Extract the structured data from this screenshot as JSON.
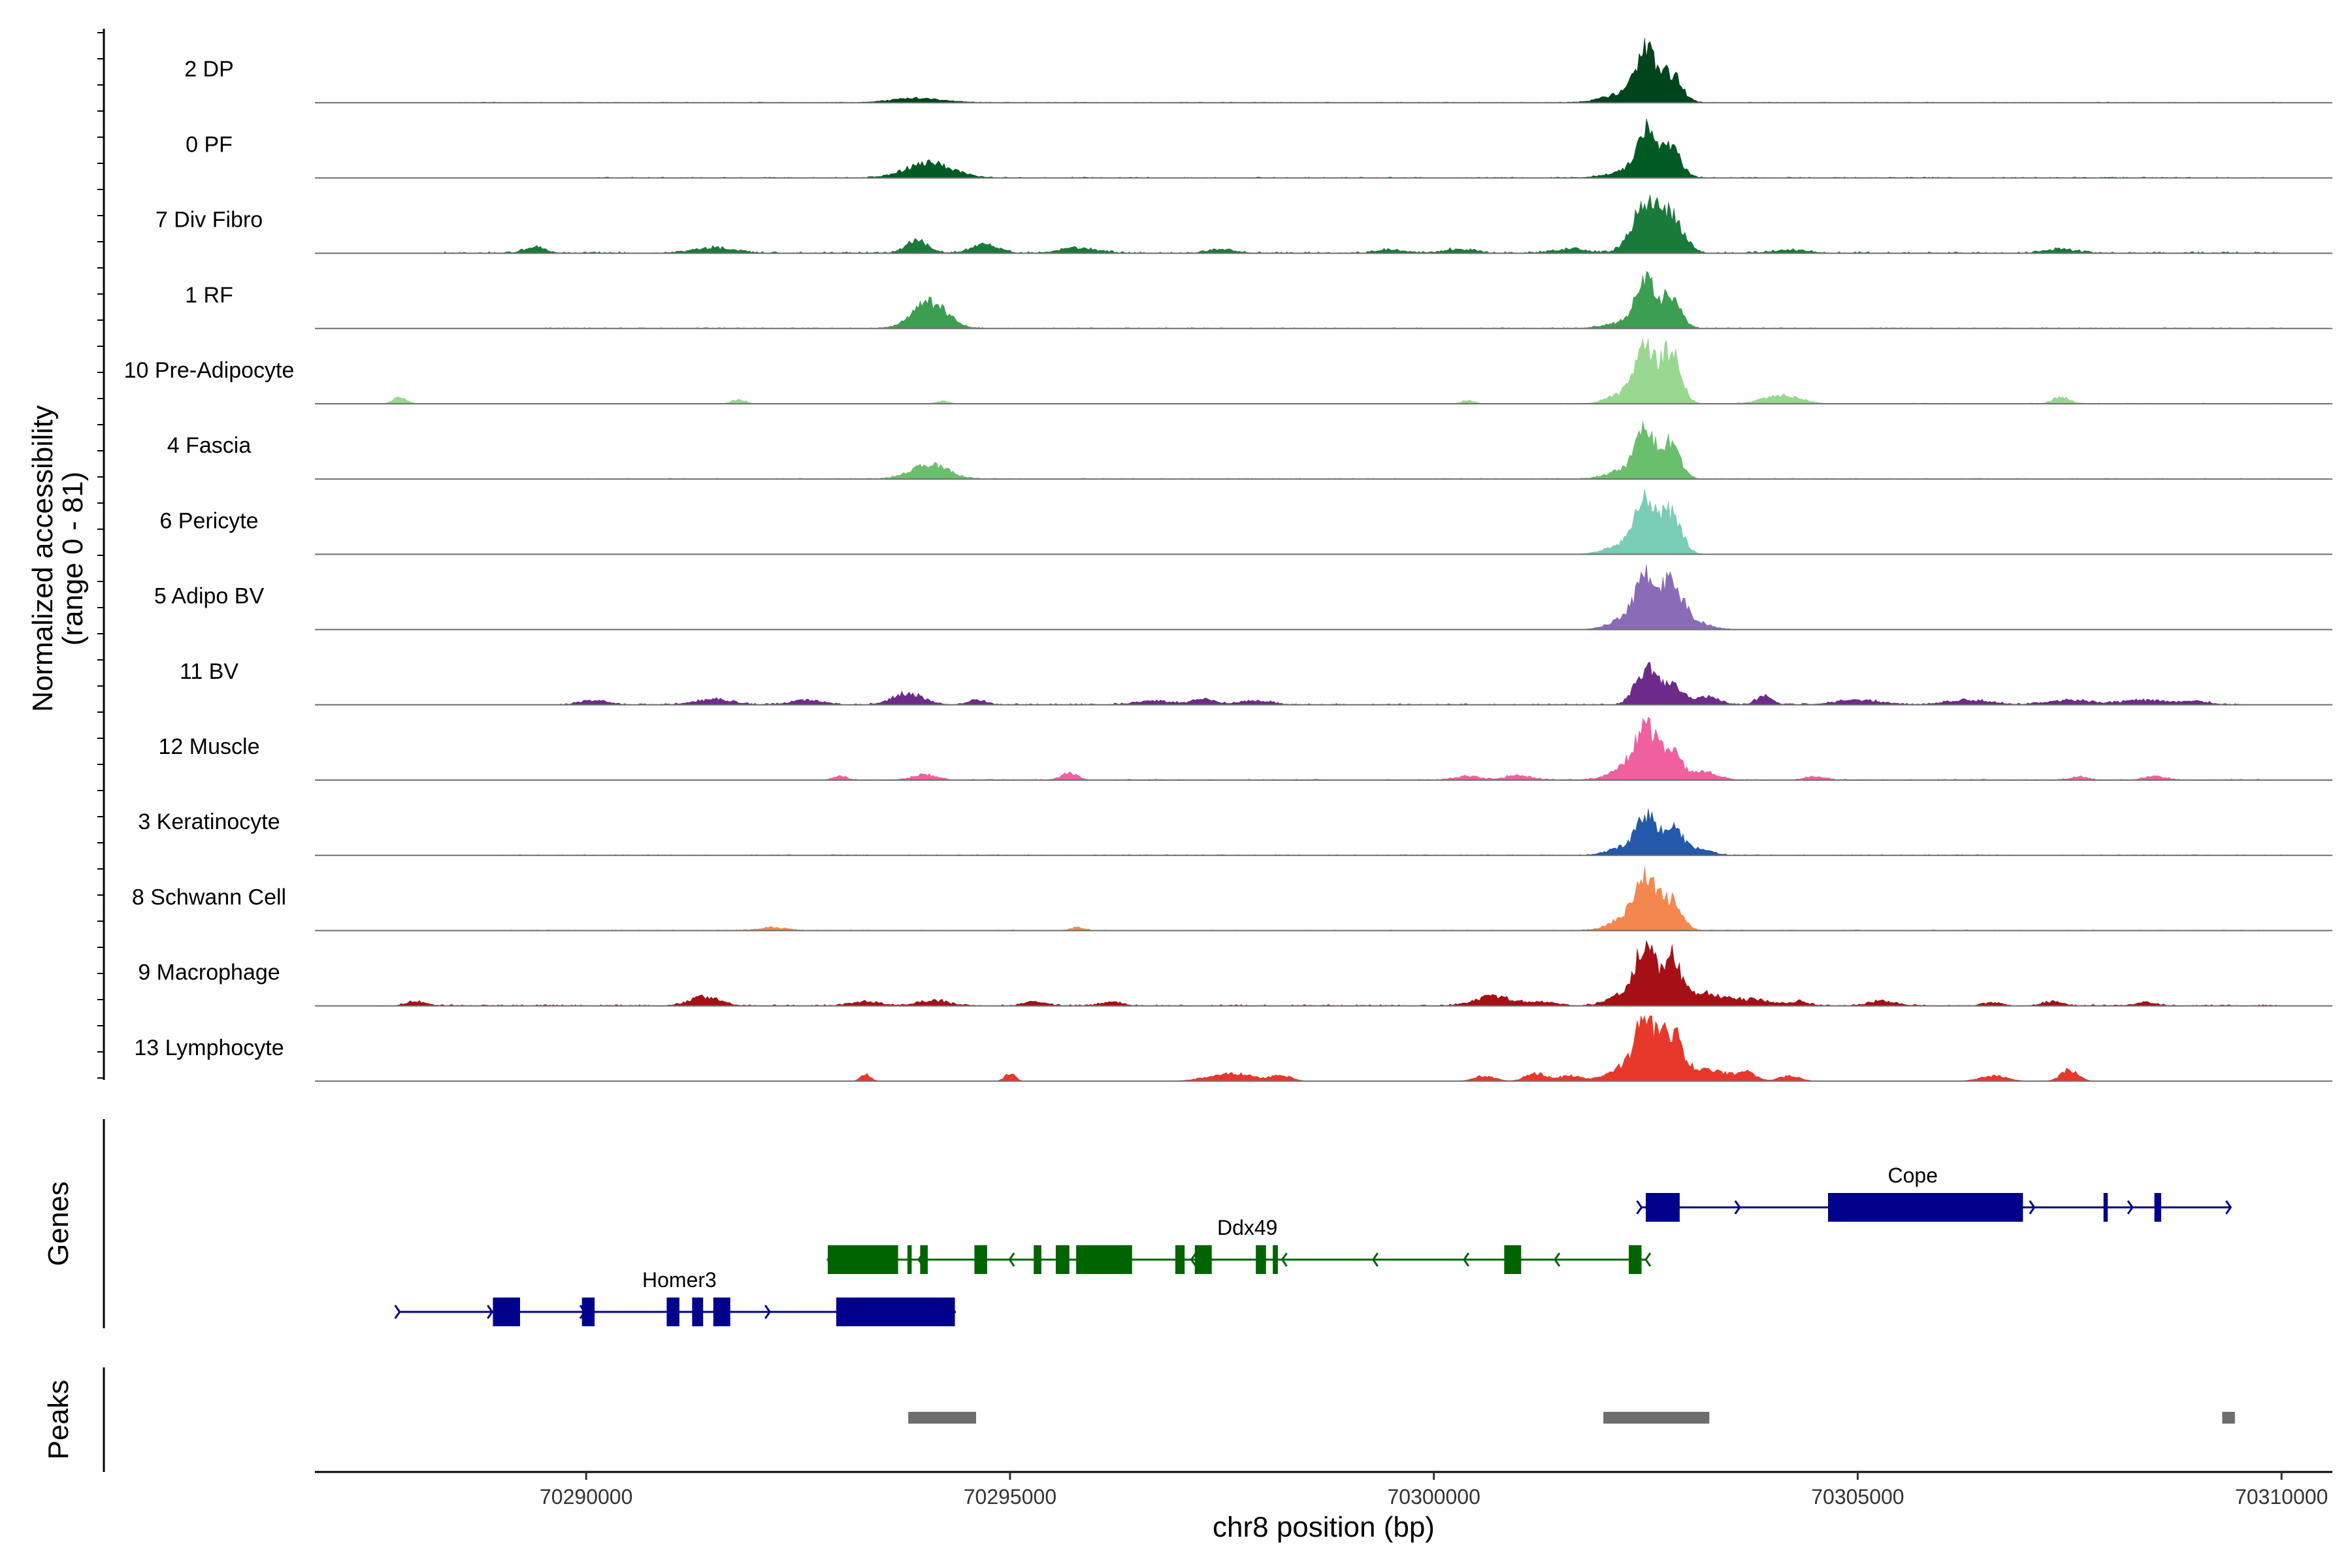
{
  "chart_data": {
    "type": "area",
    "title": "",
    "ylabel": "Normalized accessibility (range 0 - 81)",
    "ylabel_lines": [
      "Normalized accessibility",
      "(range 0 - 81)"
    ],
    "xlabel": "chr8 position (bp)",
    "xlim": [
      70286800,
      70310600
    ],
    "ylim": [
      0,
      81
    ],
    "x_ticks": [
      70290000,
      70295000,
      70300000,
      70305000,
      70310000
    ],
    "x_tick_labels": [
      "70290000",
      "70295000",
      "70300000",
      "70305000",
      "70310000"
    ],
    "genes_label": "Genes",
    "peaks_label": "Peaks",
    "series": [
      {
        "name": "2 DP",
        "color": "#00441b",
        "peaks": [
          [
            70293900,
            0.07,
            300
          ],
          [
            70302500,
            0.68,
            110
          ],
          [
            70302800,
            0.42,
            120
          ],
          [
            70302300,
            0.15,
            260
          ]
        ],
        "noise": [
          [
            70288500,
            70310000,
            0.01
          ]
        ]
      },
      {
        "name": "0 PF",
        "color": "#005a24",
        "peaks": [
          [
            70294050,
            0.22,
            280
          ],
          [
            70302500,
            0.62,
            110
          ],
          [
            70302800,
            0.42,
            110
          ],
          [
            70302400,
            0.12,
            280
          ]
        ],
        "noise": [
          [
            70290000,
            70310000,
            0.015
          ]
        ]
      },
      {
        "name": "7 Div Fibro",
        "color": "#1a7a3a",
        "peaks": [
          [
            70302500,
            0.72,
            160
          ],
          [
            70302800,
            0.5,
            140
          ],
          [
            70293900,
            0.2,
            130
          ],
          [
            70294700,
            0.13,
            160
          ],
          [
            70289400,
            0.1,
            120
          ],
          [
            70291500,
            0.08,
            240
          ],
          [
            70295800,
            0.08,
            220
          ],
          [
            70297500,
            0.06,
            160
          ],
          [
            70299500,
            0.05,
            160
          ],
          [
            70300300,
            0.06,
            180
          ],
          [
            70301600,
            0.06,
            200
          ],
          [
            70304200,
            0.05,
            200
          ],
          [
            70307400,
            0.06,
            180
          ]
        ],
        "noise": [
          [
            70288300,
            70310000,
            0.025
          ]
        ]
      },
      {
        "name": "1 RF",
        "color": "#3b9e50",
        "peaks": [
          [
            70294050,
            0.4,
            200
          ],
          [
            70302500,
            0.68,
            110
          ],
          [
            70302800,
            0.48,
            110
          ],
          [
            70302300,
            0.1,
            240
          ]
        ],
        "noise": [
          [
            70289500,
            70310000,
            0.015
          ]
        ]
      },
      {
        "name": "10 Pre-Adipocyte",
        "color": "#98d890",
        "peaks": [
          [
            70302500,
            0.78,
            110
          ],
          [
            70302800,
            0.82,
            110
          ],
          [
            70302300,
            0.18,
            200
          ],
          [
            70287800,
            0.1,
            80
          ],
          [
            70291800,
            0.07,
            80
          ],
          [
            70304100,
            0.12,
            220
          ],
          [
            70307400,
            0.1,
            100
          ],
          [
            70294200,
            0.04,
            80
          ],
          [
            70300400,
            0.05,
            80
          ]
        ],
        "noise": [
          [
            70301500,
            70310000,
            0.012
          ]
        ]
      },
      {
        "name": "4 Fascia",
        "color": "#6abf6c",
        "peaks": [
          [
            70294050,
            0.22,
            220
          ],
          [
            70302500,
            0.62,
            110
          ],
          [
            70302800,
            0.52,
            110
          ],
          [
            70302300,
            0.15,
            220
          ]
        ],
        "noise": [
          [
            70290000,
            70310000,
            0.012
          ]
        ]
      },
      {
        "name": "6 Pericyte",
        "color": "#79cdb6",
        "peaks": [
          [
            70302500,
            0.72,
            120
          ],
          [
            70302800,
            0.62,
            120
          ],
          [
            70302300,
            0.18,
            220
          ]
        ],
        "noise": [
          [
            70290000,
            70310000,
            0.008
          ]
        ]
      },
      {
        "name": "5 Adipo BV",
        "color": "#8a6bb8",
        "peaks": [
          [
            70302500,
            0.78,
            110
          ],
          [
            70302800,
            0.62,
            120
          ],
          [
            70303000,
            0.15,
            200
          ],
          [
            70302300,
            0.18,
            200
          ]
        ],
        "noise": [
          [
            70290000,
            70310000,
            0.006
          ]
        ]
      },
      {
        "name": "11 BV",
        "color": "#6e2a8a",
        "peaks": [
          [
            70302500,
            0.55,
            120
          ],
          [
            70302800,
            0.28,
            120
          ],
          [
            70303200,
            0.12,
            160
          ],
          [
            70293800,
            0.18,
            180
          ],
          [
            70290100,
            0.07,
            160
          ],
          [
            70291500,
            0.08,
            220
          ],
          [
            70292600,
            0.07,
            180
          ],
          [
            70294600,
            0.08,
            100
          ],
          [
            70296700,
            0.06,
            220
          ],
          [
            70297300,
            0.08,
            140
          ],
          [
            70297900,
            0.06,
            180
          ],
          [
            70303900,
            0.14,
            90
          ],
          [
            70305000,
            0.07,
            260
          ],
          [
            70306300,
            0.07,
            260
          ],
          [
            70307500,
            0.07,
            260
          ],
          [
            70308400,
            0.07,
            260
          ],
          [
            70309000,
            0.05,
            160
          ]
        ],
        "noise": [
          [
            70289500,
            70309600,
            0.02
          ]
        ]
      },
      {
        "name": "12 Muscle",
        "color": "#f0609e",
        "peaks": [
          [
            70302500,
            0.7,
            120
          ],
          [
            70302800,
            0.42,
            120
          ],
          [
            70302300,
            0.2,
            200
          ],
          [
            70303200,
            0.12,
            160
          ],
          [
            70294000,
            0.08,
            140
          ],
          [
            70293000,
            0.06,
            80
          ],
          [
            70295700,
            0.1,
            100
          ],
          [
            70300400,
            0.06,
            140
          ],
          [
            70301000,
            0.07,
            160
          ],
          [
            70304500,
            0.05,
            120
          ],
          [
            70308500,
            0.06,
            120
          ],
          [
            70307600,
            0.05,
            100
          ]
        ],
        "noise": [
          [
            70292800,
            70310000,
            0.015
          ]
        ]
      },
      {
        "name": "3 Keratinocyte",
        "color": "#2458a8",
        "peaks": [
          [
            70302500,
            0.55,
            100
          ],
          [
            70302800,
            0.45,
            110
          ],
          [
            70302300,
            0.15,
            200
          ],
          [
            70303100,
            0.1,
            160
          ]
        ],
        "noise": [
          [
            70289000,
            70310000,
            0.012
          ]
        ]
      },
      {
        "name": "8 Schwann Cell",
        "color": "#f4874f",
        "peaks": [
          [
            70302500,
            0.72,
            120
          ],
          [
            70302800,
            0.45,
            120
          ],
          [
            70302300,
            0.2,
            200
          ],
          [
            70292200,
            0.05,
            160
          ],
          [
            70295800,
            0.05,
            80
          ]
        ],
        "noise": [
          [
            70289000,
            70310000,
            0.012
          ]
        ]
      },
      {
        "name": "9 Macrophage",
        "color": "#a50f15",
        "peaks": [
          [
            70302500,
            0.88,
            100
          ],
          [
            70302800,
            0.68,
            110
          ],
          [
            70303200,
            0.18,
            260
          ],
          [
            70302300,
            0.2,
            200
          ],
          [
            70291400,
            0.14,
            180
          ],
          [
            70300700,
            0.14,
            220
          ],
          [
            70288000,
            0.06,
            120
          ],
          [
            70293300,
            0.06,
            180
          ],
          [
            70294100,
            0.08,
            180
          ],
          [
            70295300,
            0.07,
            120
          ],
          [
            70296200,
            0.06,
            120
          ],
          [
            70301300,
            0.06,
            160
          ],
          [
            70303800,
            0.08,
            200
          ],
          [
            70304300,
            0.06,
            120
          ],
          [
            70305300,
            0.07,
            160
          ],
          [
            70306600,
            0.05,
            100
          ],
          [
            70307300,
            0.06,
            120
          ],
          [
            70308400,
            0.05,
            120
          ]
        ],
        "noise": [
          [
            70287800,
            70310000,
            0.02
          ]
        ]
      },
      {
        "name": "13 Lymphocyte",
        "color": "#e8382b",
        "peaks": [
          [
            70302500,
            0.95,
            110
          ],
          [
            70302800,
            0.7,
            120
          ],
          [
            70302250,
            0.22,
            200
          ],
          [
            70303200,
            0.18,
            260
          ],
          [
            70293300,
            0.1,
            60
          ],
          [
            70295000,
            0.12,
            60
          ],
          [
            70297600,
            0.12,
            260
          ],
          [
            70298200,
            0.08,
            120
          ],
          [
            70300600,
            0.08,
            120
          ],
          [
            70301200,
            0.12,
            120
          ],
          [
            70301600,
            0.08,
            140
          ],
          [
            70303700,
            0.12,
            100
          ],
          [
            70304200,
            0.08,
            120
          ],
          [
            70306600,
            0.08,
            160
          ],
          [
            70307500,
            0.18,
            100
          ]
        ],
        "noise": []
      }
    ],
    "genes": [
      {
        "name": "Cope",
        "strand": "+",
        "color": "#00008b",
        "start": 70302450,
        "end": 70309400,
        "exons": [
          [
            70302500,
            70302900
          ],
          [
            70304650,
            70306950
          ],
          [
            70307900,
            70307950
          ],
          [
            70308500,
            70308580
          ]
        ]
      },
      {
        "name": "Ddx49",
        "strand": "-",
        "color": "#006400",
        "start": 70292850,
        "end": 70302500,
        "exons": [
          [
            70292850,
            70293680
          ],
          [
            70293790,
            70293840
          ],
          [
            70293940,
            70294030
          ],
          [
            70294580,
            70294730
          ],
          [
            70295280,
            70295370
          ],
          [
            70295540,
            70295700
          ],
          [
            70295780,
            70296440
          ],
          [
            70296950,
            70297060
          ],
          [
            70297180,
            70297380
          ],
          [
            70297900,
            70298020
          ],
          [
            70298100,
            70298160
          ],
          [
            70300830,
            70301030
          ],
          [
            70302300,
            70302450
          ]
        ]
      },
      {
        "name": "Homer3",
        "strand": "+",
        "color": "#00008b",
        "start": 70287800,
        "end": 70294350,
        "exons": [
          [
            70288900,
            70289220
          ],
          [
            70289950,
            70290100
          ],
          [
            70290950,
            70291100
          ],
          [
            70291250,
            70291380
          ],
          [
            70291500,
            70291700
          ],
          [
            70292950,
            70294350
          ]
        ]
      }
    ],
    "peaks": [
      [
        70293800,
        70294600
      ],
      [
        70302000,
        70303250
      ],
      [
        70309300,
        70309450
      ]
    ]
  }
}
